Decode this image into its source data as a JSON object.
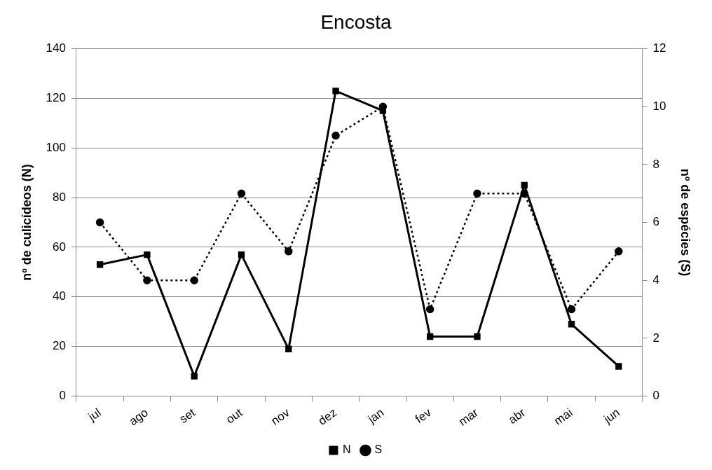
{
  "chart_data": {
    "type": "line",
    "title": "Encosta",
    "ylabel": "nº de culicídeos (N)",
    "y2label": "nº de espécies (S)",
    "categories": [
      "jul",
      "ago",
      "set",
      "out",
      "nov",
      "dez",
      "jan",
      "fev",
      "mar",
      "abr",
      "mai",
      "jun"
    ],
    "series": [
      {
        "name": "N",
        "color": "#000000",
        "marker": "square",
        "line_style": "solid",
        "values": [
          53,
          57,
          8,
          57,
          19,
          123,
          115,
          24,
          24,
          85,
          29,
          12
        ]
      },
      {
        "name": "S",
        "color": "#000000",
        "marker": "circle",
        "line_style": "dotted",
        "axis": "y2",
        "values": [
          6,
          4,
          4,
          7,
          5,
          9,
          10,
          3,
          7,
          7,
          3,
          5
        ]
      }
    ],
    "ylim": [
      0,
      140
    ],
    "yticks": [
      0,
      20,
      40,
      60,
      80,
      100,
      120,
      140
    ],
    "y2lim": [
      0,
      12
    ],
    "y2ticks": [
      0,
      2,
      4,
      6,
      8,
      10,
      12
    ],
    "grid": "y",
    "legend": "bottom"
  }
}
